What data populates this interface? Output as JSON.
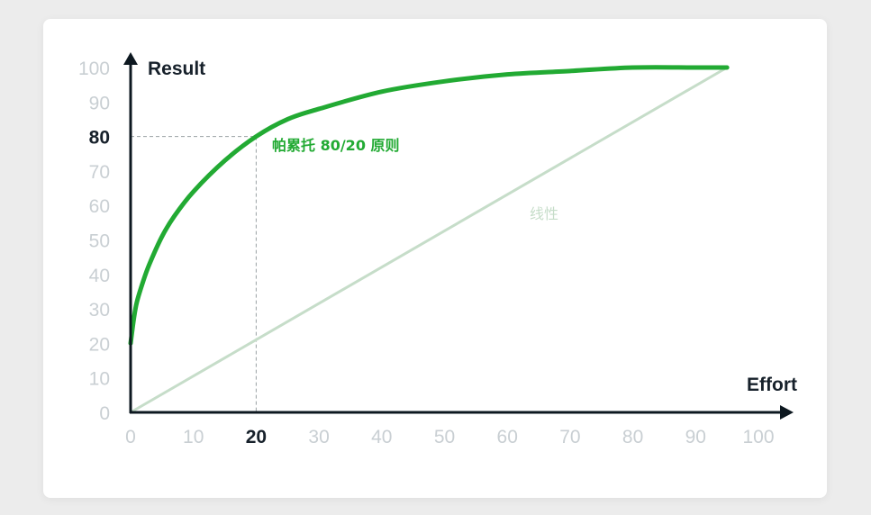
{
  "chart_data": {
    "type": "line",
    "xlabel": "Effort",
    "ylabel": "Result",
    "xlim": [
      0,
      100
    ],
    "ylim": [
      0,
      100
    ],
    "x_ticks": [
      "0",
      "10",
      "20",
      "30",
      "40",
      "50",
      "60",
      "70",
      "80",
      "90",
      "100"
    ],
    "y_ticks": [
      "0",
      "10",
      "20",
      "30",
      "40",
      "50",
      "60",
      "70",
      "80",
      "90",
      "100"
    ],
    "highlight": {
      "x": 20,
      "y": 80
    },
    "grid": false,
    "series": [
      {
        "name": "帕累托 80/20 原则",
        "color": "#22aa33",
        "x": [
          0,
          0.5,
          1,
          2,
          3,
          5,
          7,
          10,
          15,
          20,
          25,
          30,
          40,
          50,
          60,
          70,
          80,
          90,
          95
        ],
        "y": [
          20,
          27,
          32,
          38,
          43,
          51,
          57,
          64,
          73,
          80,
          85,
          88,
          93,
          96,
          98,
          99,
          100,
          100,
          100
        ]
      },
      {
        "name": "线性",
        "color": "#c6ddc9",
        "x": [
          0,
          95
        ],
        "y": [
          0,
          100
        ]
      }
    ]
  },
  "colors": {
    "pareto": "#22aa33",
    "linear": "#c6ddc9",
    "axis": "#0d1820",
    "tick": "#c9cfd3",
    "highlight_tick": "#17212b",
    "guide": "#9aa0a4"
  }
}
